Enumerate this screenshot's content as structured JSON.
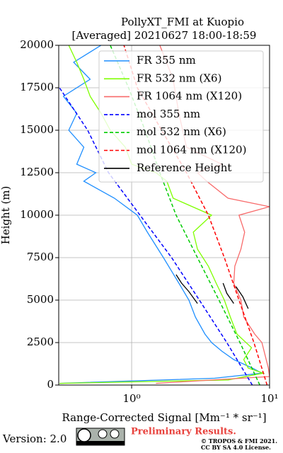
{
  "chart_data": {
    "type": "line",
    "title": "PollyXT_FMI at Kuopio",
    "subtitle": "[Averaged] 20210627 18:00-18:59",
    "x_label": "Range-Corrected Signal [Mm⁻¹ * sr⁻¹]",
    "y_label": "Height (m)",
    "x_log": true,
    "xlim": [
      0.296,
      10
    ],
    "ylim": [
      0,
      20000
    ],
    "xticks": [
      {
        "value": 1,
        "label": "10⁰"
      },
      {
        "value": 10,
        "label": "10¹"
      }
    ],
    "yticks": [
      0,
      2500,
      5000,
      7500,
      10000,
      12500,
      15000,
      17500,
      20000
    ],
    "grid": true,
    "legend": "upper right",
    "series": [
      {
        "name": "FR 355 nm",
        "color": "#1f8fff",
        "dash": false,
        "x": [
          0.3,
          4.0,
          8.8,
          7.5,
          5.5,
          4.5,
          3.8,
          3.4,
          2.9,
          2.6,
          2.2,
          1.7,
          1.3,
          1.1,
          0.75,
          0.45,
          0.55,
          0.4,
          0.45,
          0.35,
          0.4,
          0.32,
          0.5,
          0.38,
          0.6
        ],
        "y": [
          100,
          400,
          700,
          1000,
          1500,
          2000,
          2500,
          3000,
          4000,
          5000,
          6000,
          7500,
          9000,
          10000,
          11000,
          12000,
          12500,
          13000,
          14000,
          15000,
          16000,
          17000,
          18000,
          19000,
          20000
        ]
      },
      {
        "name": "FR 532 nm (X6)",
        "color": "#7fff00",
        "dash": false,
        "x": [
          0.3,
          5.0,
          9.0,
          7.0,
          6.5,
          7.4,
          5.8,
          5.2,
          4.7,
          4.1,
          3.6,
          3.0,
          2.8,
          3.8,
          2.0,
          1.8,
          1.5,
          1.0,
          0.9,
          0.7,
          0.6,
          0.5,
          0.45,
          0.4,
          0.35
        ],
        "y": [
          100,
          300,
          700,
          1000,
          1500,
          2200,
          3000,
          4000,
          5000,
          6000,
          7000,
          8000,
          9000,
          10000,
          11000,
          12000,
          12500,
          13000,
          14000,
          15000,
          16000,
          17000,
          18000,
          19000,
          20000
        ]
      },
      {
        "name": "FR 1064 nm (X120)",
        "color": "#f86a6a",
        "dash": false,
        "x": [
          1.5,
          10,
          9.8,
          8.8,
          7.8,
          6.5,
          6.2,
          5.5,
          5.6,
          6.2,
          6.6,
          6.0,
          10,
          5.0,
          3.5,
          3.0,
          4.5,
          2.5,
          2.2,
          2.0,
          1.6
        ],
        "y": [
          100,
          500,
          1000,
          2500,
          3000,
          4000,
          5000,
          6000,
          7000,
          8000,
          9000,
          10000,
          10500,
          11000,
          12000,
          12500,
          13000,
          14000,
          16000,
          18000,
          20000
        ]
      },
      {
        "name": "mol 355 nm",
        "color": "#0000ff",
        "dash": true,
        "x": [
          7.5,
          4.9,
          3.1,
          1.95,
          1.15,
          0.68,
          0.48,
          0.3
        ],
        "y": [
          0,
          2500,
          5000,
          7500,
          10000,
          12500,
          15000,
          17500
        ]
      },
      {
        "name": "mol 532 nm (X6)",
        "color": "#00cc00",
        "dash": true,
        "x": [
          8.5,
          6.1,
          4.3,
          3.0,
          2.1,
          1.6,
          1.25,
          0.95,
          0.7
        ],
        "y": [
          0,
          2500,
          5000,
          7500,
          10000,
          12500,
          15000,
          17500,
          20000
        ]
      },
      {
        "name": "mol 1064 nm (X120)",
        "color": "#ff0000",
        "dash": true,
        "x": [
          9.6,
          7.7,
          6.0,
          4.7,
          3.6,
          2.5,
          1.65,
          1.1,
          0.88
        ],
        "y": [
          0,
          2500,
          5000,
          7500,
          10000,
          12500,
          15000,
          17500,
          20000
        ]
      },
      {
        "name": "Reference Height",
        "color": "#000000",
        "dash": false,
        "x": [
          3.0,
          2.6,
          2.3,
          2.1,
          null,
          5.5,
          4.9,
          4.6,
          null,
          7.0,
          6.4,
          5.7
        ],
        "y": [
          4800,
          5500,
          6000,
          6500,
          null,
          4800,
          5400,
          6000,
          null,
          4500,
          5200,
          5800
        ]
      }
    ]
  },
  "footer": {
    "version": "Version: 2.0",
    "notice": "Preliminary Results.",
    "copyright": "© TROPOS & FMI 2021.",
    "license": "CC BY SA 4.0 License."
  }
}
